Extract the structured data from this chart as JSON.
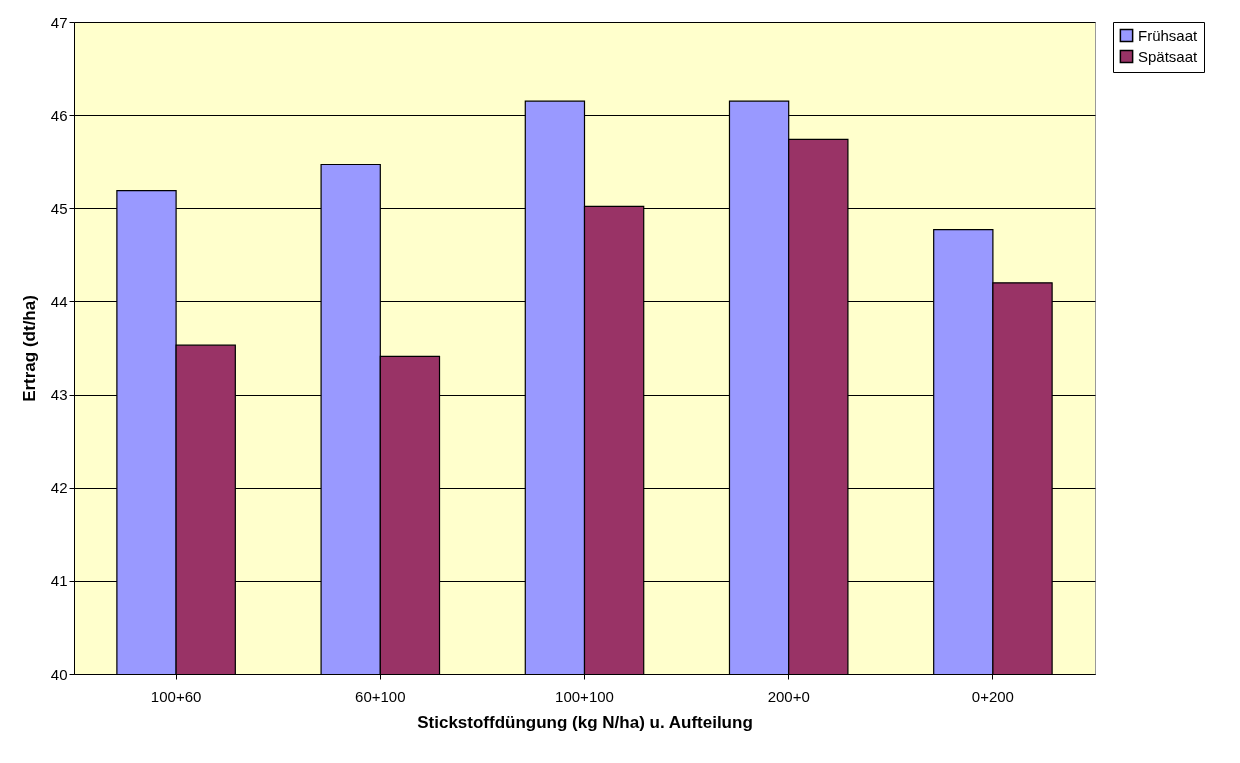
{
  "chart_data": {
    "type": "bar",
    "xlabel": "Stickstoffdüngung (kg N/ha) u. Aufteilung",
    "ylabel": "Ertrag (dt/ha)",
    "categories": [
      "100+60",
      "60+100",
      "100+100",
      "200+0",
      "0+200"
    ],
    "series": [
      {
        "name": "Frühsaat",
        "color": "#9999ff",
        "values": [
          45.19,
          45.47,
          46.15,
          46.15,
          44.77
        ]
      },
      {
        "name": "Spätsaat",
        "color": "#993366",
        "values": [
          43.53,
          43.41,
          45.02,
          45.74,
          44.2
        ]
      }
    ],
    "ylim": [
      40,
      47
    ],
    "yticks": [
      40,
      41,
      42,
      43,
      44,
      45,
      46,
      47
    ],
    "grid": "y",
    "legend": "right"
  }
}
